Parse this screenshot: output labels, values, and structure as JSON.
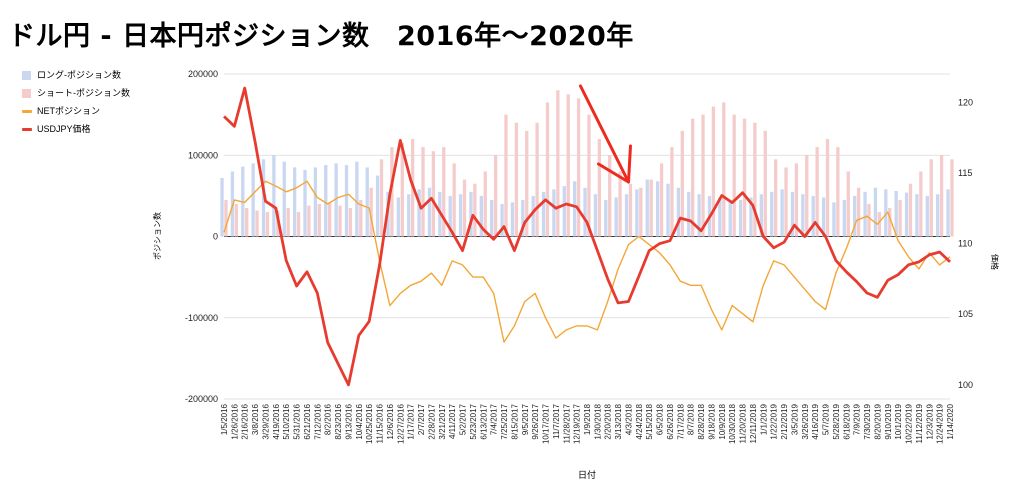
{
  "page_title": "ドル円 - 日本円ポジション数　2016年〜2020年",
  "chart_data": {
    "type": "bar",
    "title": "ドル円 - 日本円ポジション数　2016年〜2020年",
    "xlabel": "日付",
    "ylabel_left": "ポジション数",
    "ylabel_right": "価格",
    "ylim_left": [
      -200000,
      200000
    ],
    "ylim_right": [
      99,
      122
    ],
    "yticks_left": [
      "200000",
      "100000",
      "0",
      "-100000",
      "-200000"
    ],
    "yticks_right": [
      "120",
      "115",
      "110",
      "105",
      "100"
    ],
    "yticks_left_values": [
      200000,
      100000,
      0,
      -100000,
      -200000
    ],
    "yticks_right_values": [
      120,
      115,
      110,
      105,
      100
    ],
    "grid": true,
    "legend_position": "left",
    "colors": {
      "long": "#c9d7f1",
      "short": "#f4cccc",
      "net": "#f4a637",
      "usdjpy": "#e63b2e",
      "annotation": "#ee2a1e"
    },
    "legend": [
      "ロング-ポジション数",
      "ショート-ポジション数",
      "NETポジション",
      "USDJPY価格"
    ],
    "categories": [
      "1/5/2016",
      "1/26/2016",
      "2/16/2016",
      "3/8/2016",
      "3/29/2016",
      "4/19/2016",
      "5/10/2016",
      "5/31/2016",
      "6/21/2016",
      "7/12/2016",
      "8/2/2016",
      "8/23/2016",
      "9/13/2016",
      "10/4/2016",
      "10/25/2016",
      "11/15/2016",
      "12/6/2016",
      "12/27/2016",
      "1/17/2017",
      "2/7/2017",
      "2/28/2017",
      "3/21/2017",
      "4/11/2017",
      "5/2/2017",
      "5/23/2017",
      "6/13/2017",
      "7/4/2017",
      "7/25/2017",
      "8/15/2017",
      "9/5/2017",
      "9/26/2017",
      "10/17/2017",
      "11/7/2017",
      "11/28/2017",
      "12/19/2017",
      "1/9/2018",
      "1/30/2018",
      "2/20/2018",
      "3/13/2018",
      "4/3/2018",
      "4/24/2018",
      "5/15/2018",
      "6/5/2018",
      "6/26/2018",
      "7/17/2018",
      "8/7/2018",
      "8/28/2018",
      "9/18/2018",
      "10/9/2018",
      "10/30/2018",
      "11/20/2018",
      "12/11/2018",
      "1/1/2019",
      "1/22/2019",
      "2/12/2019",
      "3/5/2019",
      "3/26/2019",
      "4/16/2019",
      "5/7/2019",
      "5/28/2019",
      "6/18/2019",
      "7/9/2019",
      "7/30/2019",
      "8/20/2019",
      "9/10/2019",
      "10/1/2019",
      "10/22/2019",
      "11/12/2019",
      "12/3/2019",
      "12/24/2019",
      "1/14/2020"
    ],
    "series": [
      {
        "name": "ロング-ポジション数",
        "kind": "bar",
        "axis": "left",
        "values": [
          72000,
          80000,
          86000,
          90000,
          95000,
          100000,
          92000,
          85000,
          82000,
          85000,
          88000,
          90000,
          88000,
          92000,
          85000,
          75000,
          55000,
          48000,
          52000,
          58000,
          60000,
          55000,
          50000,
          52000,
          55000,
          50000,
          45000,
          40000,
          42000,
          45000,
          50000,
          55000,
          58000,
          62000,
          68000,
          60000,
          52000,
          45000,
          48000,
          52000,
          58000,
          70000,
          68000,
          65000,
          60000,
          55000,
          52000,
          50000,
          48000,
          45000,
          45000,
          48000,
          52000,
          55000,
          58000,
          55000,
          52000,
          50000,
          48000,
          42000,
          45000,
          50000,
          55000,
          60000,
          58000,
          56000,
          54000,
          52000,
          50000,
          52000,
          58000
        ]
      },
      {
        "name": "ショート-ポジション数",
        "kind": "bar",
        "axis": "left",
        "values": [
          45000,
          40000,
          35000,
          32000,
          30000,
          32000,
          35000,
          30000,
          38000,
          40000,
          42000,
          38000,
          35000,
          45000,
          60000,
          95000,
          110000,
          115000,
          120000,
          110000,
          105000,
          110000,
          90000,
          70000,
          65000,
          80000,
          100000,
          150000,
          140000,
          130000,
          140000,
          165000,
          180000,
          175000,
          170000,
          150000,
          120000,
          100000,
          80000,
          65000,
          60000,
          70000,
          90000,
          110000,
          130000,
          145000,
          150000,
          160000,
          165000,
          150000,
          145000,
          140000,
          130000,
          95000,
          85000,
          90000,
          100000,
          110000,
          120000,
          110000,
          80000,
          60000,
          40000,
          30000,
          35000,
          45000,
          65000,
          80000,
          95000,
          100000,
          95000
        ]
      },
      {
        "name": "NETポジション",
        "kind": "line",
        "axis": "left",
        "values": [
          5000,
          45000,
          42000,
          55000,
          68000,
          62000,
          55000,
          60000,
          68000,
          48000,
          40000,
          48000,
          52000,
          40000,
          35000,
          -30000,
          -85000,
          -70000,
          -60000,
          -55000,
          -45000,
          -60000,
          -30000,
          -35000,
          -50000,
          -50000,
          -70000,
          -130000,
          -110000,
          -80000,
          -70000,
          -100000,
          -125000,
          -115000,
          -110000,
          -110000,
          -115000,
          -80000,
          -40000,
          -10000,
          0,
          -10000,
          -20000,
          -35000,
          -55000,
          -60000,
          -60000,
          -90000,
          -115000,
          -85000,
          -95000,
          -105000,
          -60000,
          -30000,
          -35000,
          -50000,
          -65000,
          -80000,
          -90000,
          -45000,
          -15000,
          20000,
          25000,
          15000,
          30000,
          -5000,
          -25000,
          -40000,
          -20000,
          -35000,
          -25000
        ]
      },
      {
        "name": "USDJPY価格",
        "kind": "line",
        "axis": "right",
        "values": [
          119,
          118.3,
          121,
          117.2,
          113,
          112.5,
          108.8,
          107,
          108,
          106.5,
          103,
          101.5,
          100,
          103.5,
          104.5,
          108.5,
          113.5,
          117.3,
          114.5,
          112.5,
          113.2,
          112,
          110.8,
          109.5,
          112,
          111,
          110.3,
          111.2,
          109.5,
          111.5,
          112.4,
          113.1,
          112.5,
          112.8,
          112.6,
          111.5,
          109.5,
          107.5,
          105.8,
          105.9,
          107.7,
          109.5,
          110,
          110.2,
          111.8,
          111.6,
          110.9,
          112.1,
          113.4,
          112.9,
          113.6,
          112.7,
          110.5,
          109.7,
          110.1,
          111.3,
          110.5,
          111.5,
          110.5,
          108.8,
          108,
          107.3,
          106.5,
          106.2,
          107.4,
          107.8,
          108.5,
          108.7,
          109.2,
          109.4,
          108.7
        ]
      }
    ],
    "annotation": {
      "type": "arrow",
      "target_category": "4/3/2018"
    }
  }
}
